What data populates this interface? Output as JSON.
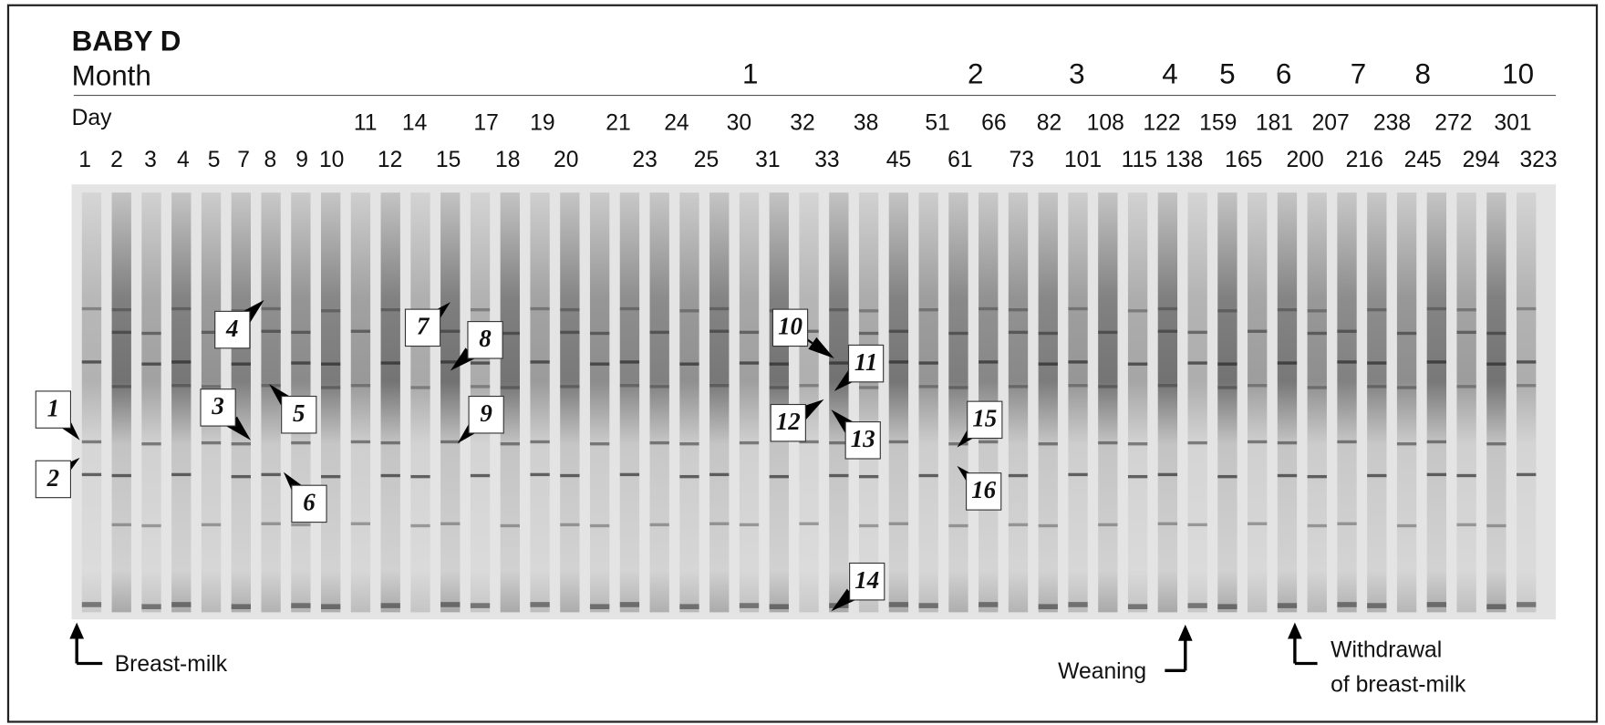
{
  "title": "BABY D",
  "month_label": "Month",
  "months": [
    "1",
    "2",
    "3",
    "4",
    "5",
    "6",
    "7",
    "8",
    "10"
  ],
  "day_label": "Day",
  "days_top": [
    "11",
    "14",
    "17",
    "19",
    "21",
    "24",
    "30",
    "32",
    "38",
    "51",
    "66",
    "82",
    "108",
    "122",
    "159",
    "181",
    "207",
    "238",
    "272",
    "301"
  ],
  "days_bottom": [
    "1",
    "2",
    "3",
    "4",
    "5",
    "7",
    "8",
    "9",
    "10",
    "12",
    "15",
    "18",
    "20",
    "23",
    "25",
    "31",
    "33",
    "45",
    "61",
    "73",
    "101",
    "115",
    "138",
    "165",
    "200",
    "216",
    "245",
    "294",
    "323"
  ],
  "band_markers": [
    "1",
    "2",
    "3",
    "4",
    "5",
    "6",
    "7",
    "8",
    "9",
    "10",
    "11",
    "12",
    "13",
    "14",
    "15",
    "16"
  ],
  "annotations": {
    "breast_milk": "Breast-milk",
    "weaning": "Weaning",
    "withdrawal": [
      "Withdrawal",
      "of breast-milk"
    ]
  }
}
